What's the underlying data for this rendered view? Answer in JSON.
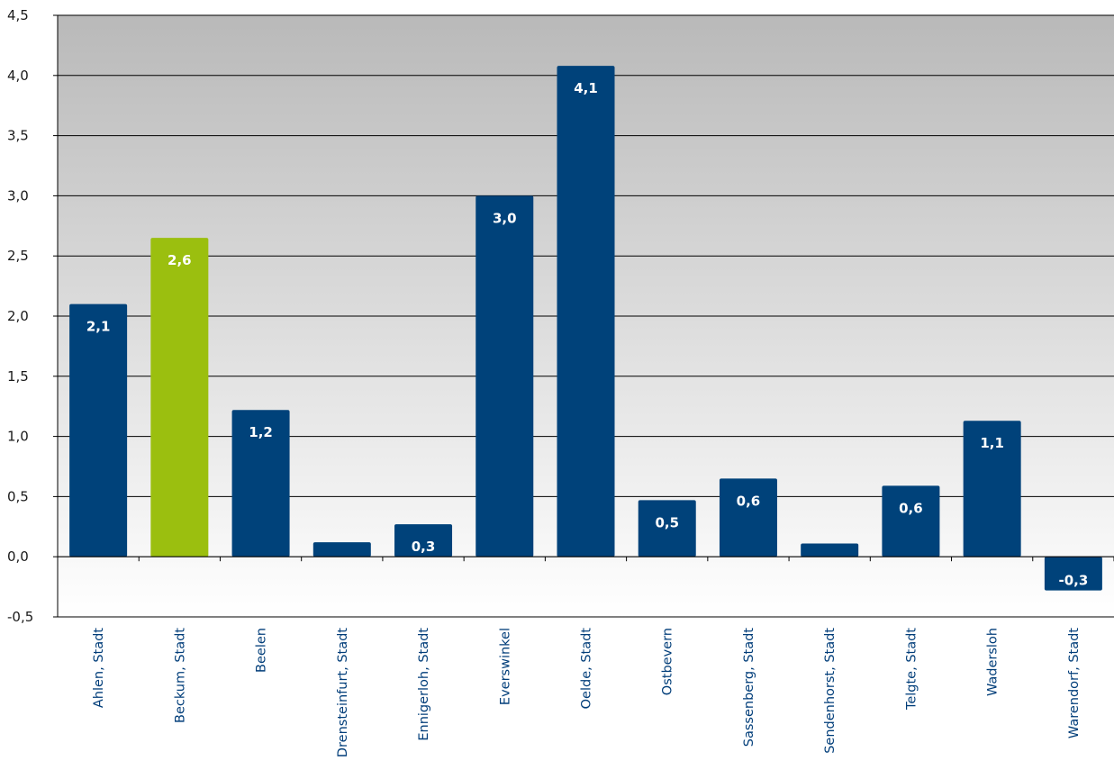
{
  "chart_data": {
    "type": "bar",
    "categories": [
      "Ahlen, Stadt",
      "Beckum, Stadt",
      "Beelen",
      "Drensteinfurt, Stadt",
      "Ennigerloh, Stadt",
      "Everswinkel",
      "Oelde, Stadt",
      "Ostbevern",
      "Sassenberg, Stadt",
      "Sendenhorst, Stadt",
      "Telgte, Stadt",
      "Wadersloh",
      "Warendorf, Stadt"
    ],
    "values": [
      2.1,
      2.65,
      1.22,
      0.12,
      0.27,
      3.0,
      4.08,
      0.47,
      0.65,
      0.11,
      0.59,
      1.13,
      -0.28
    ],
    "data_labels": [
      "2,1",
      "2,6",
      "1,2",
      "",
      "0,3",
      "3,0",
      "4,1",
      "0,5",
      "0,6",
      "",
      "0,6",
      "1,1",
      "-0,3"
    ],
    "highlight_index": 1,
    "ylim": [
      -0.5,
      4.5
    ],
    "yticks": [
      -0.5,
      0.0,
      0.5,
      1.0,
      1.5,
      2.0,
      2.5,
      3.0,
      3.5,
      4.0,
      4.5
    ],
    "ytick_labels": [
      "-0,5",
      "0,0",
      "0,5",
      "1,0",
      "1,5",
      "2,0",
      "2,5",
      "3,0",
      "3,5",
      "4,0",
      "4,5"
    ],
    "grid": true,
    "title": "",
    "xlabel": "",
    "ylabel": "",
    "colors": {
      "bar": "#00427a",
      "highlight": "#9bbf0f",
      "plot_bg_top": "#b9b9b9",
      "plot_bg_bottom": "#ffffff",
      "grid": "#000000",
      "category_text": "#003d79"
    }
  }
}
